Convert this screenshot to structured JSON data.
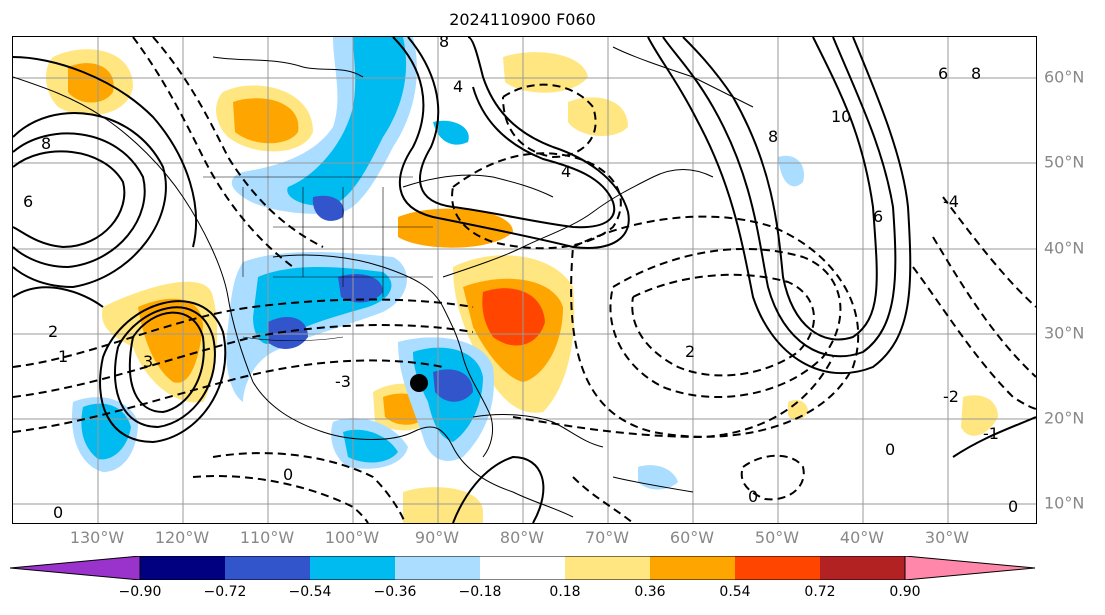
{
  "title": "2024110900 F060",
  "lon_labels": [
    "130°W",
    "120°W",
    "110°W",
    "100°W",
    "90°W",
    "80°W",
    "70°W",
    "60°W",
    "50°W",
    "40°W",
    "30°W"
  ],
  "lat_labels": [
    "60°N",
    "50°N",
    "40°N",
    "30°N",
    "20°N",
    "10°N"
  ],
  "colorbar": {
    "ticks": [
      "−0.90",
      "−0.72",
      "−0.54",
      "−0.36",
      "−0.18",
      "0.18",
      "0.36",
      "0.54",
      "0.72",
      "0.90"
    ],
    "colors": [
      "#9933cc",
      "#000080",
      "#3355cc",
      "#00bbf0",
      "#aaddff",
      "#ffffff",
      "#ffe680",
      "#ffa500",
      "#ff4500",
      "#b22222",
      "#ff88aa"
    ]
  },
  "contour_labels": [
    "8",
    "6",
    "4",
    "2",
    "0",
    "-2",
    "-4",
    "10",
    "1",
    "-1",
    "3",
    "-3"
  ]
}
